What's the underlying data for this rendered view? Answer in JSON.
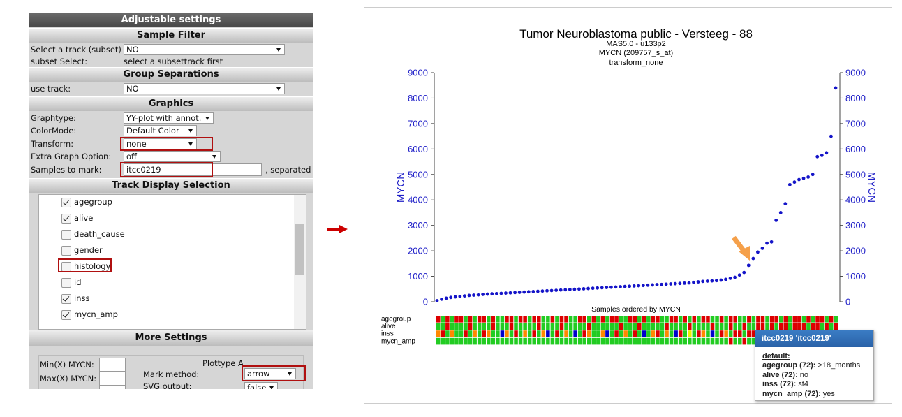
{
  "panel": {
    "title": "Adjustable settings",
    "sample_filter": {
      "heading": "Sample Filter",
      "rows": [
        {
          "label": "Select a track (subset)",
          "value": "NO"
        },
        {
          "label": "subset Select:",
          "value": "select a subsettrack first"
        }
      ]
    },
    "group_separations": {
      "heading": "Group Separations",
      "rows": [
        {
          "label": "use track:",
          "value": "NO"
        }
      ]
    },
    "graphics": {
      "heading": "Graphics",
      "rows": [
        {
          "label": "Graphtype:",
          "value": "YY-plot with annot."
        },
        {
          "label": "ColorMode:",
          "value": "Default Color"
        },
        {
          "label": "Transform:",
          "value": "none"
        },
        {
          "label": "Extra Graph Option:",
          "value": "off"
        },
        {
          "label": "Samples to mark:",
          "value": "itcc0219",
          "suffix": ", separated"
        }
      ]
    },
    "track_display": {
      "heading": "Track Display Selection",
      "items": [
        {
          "label": "agegroup",
          "checked": true
        },
        {
          "label": "alive",
          "checked": true
        },
        {
          "label": "death_cause",
          "checked": false
        },
        {
          "label": "gender",
          "checked": false
        },
        {
          "label": "histology",
          "checked": false
        },
        {
          "label": "id",
          "checked": false
        },
        {
          "label": "inss",
          "checked": true
        },
        {
          "label": "mycn_amp",
          "checked": true
        }
      ]
    },
    "more_settings": {
      "heading": "More Settings",
      "min_label": "Min(X) MYCN:",
      "max_label": "Max(X) MYCN:",
      "plottype": "Plottype A",
      "mark_label": "Mark method:",
      "mark_value": "arrow",
      "svg_label": "SVG output:",
      "svg_value": "false"
    }
  },
  "chart_data": {
    "type": "scatter",
    "title": "Tumor Neuroblastoma public - Versteeg - 88",
    "subtitles": [
      "MAS5.0 - u133p2",
      "MYCN (209757_s_at)",
      "transform_none"
    ],
    "y_label": "MYCN",
    "y2_label": "MYCN",
    "x_label": "Samples ordered by MYCN",
    "color": "#1414c8",
    "axis_color": "#2020c8",
    "ylim": [
      0,
      9000
    ],
    "yticks": [
      0,
      1000,
      2000,
      3000,
      4000,
      5000,
      6000,
      7000,
      8000,
      9000
    ],
    "y2lim": [
      0,
      9000
    ],
    "y2ticks": [
      0,
      1000,
      2000,
      3000,
      4000,
      5000,
      6000,
      7000,
      8000,
      9000
    ],
    "values": [
      40,
      100,
      140,
      170,
      190,
      210,
      230,
      250,
      260,
      270,
      290,
      300,
      310,
      320,
      330,
      340,
      350,
      360,
      370,
      380,
      390,
      400,
      410,
      420,
      430,
      440,
      450,
      460,
      470,
      480,
      490,
      500,
      510,
      520,
      530,
      540,
      550,
      560,
      570,
      580,
      590,
      600,
      610,
      620,
      630,
      640,
      650,
      660,
      670,
      680,
      690,
      700,
      710,
      720,
      730,
      740,
      760,
      780,
      800,
      810,
      820,
      830,
      850,
      880,
      920,
      960,
      1050,
      1150,
      1430,
      1700,
      1950,
      2100,
      2300,
      2350,
      3200,
      3500,
      3850,
      4600,
      4700,
      4800,
      4850,
      4900,
      5000,
      5700,
      5750,
      5850,
      6500,
      8400
    ],
    "tracks": [
      {
        "name": "agegroup",
        "colors": [
          "#d00",
          "#2c2",
          "#d00",
          "#2c2",
          "#d00",
          "#d00",
          "#2c2",
          "#d00",
          "#2c2",
          "#d00",
          "#d00",
          "#2c2",
          "#d00",
          "#2c2",
          "#2c2",
          "#d00",
          "#d00",
          "#2c2",
          "#d00",
          "#d00",
          "#2c2",
          "#d00",
          "#d00",
          "#2c2",
          "#2c2",
          "#d00",
          "#2c2",
          "#d00",
          "#d00",
          "#2c2",
          "#2c2",
          "#d00",
          "#d00",
          "#2c2",
          "#d00",
          "#2c2",
          "#d00",
          "#2c2",
          "#d00",
          "#d00",
          "#2c2",
          "#2c2",
          "#d00",
          "#d00",
          "#2c2",
          "#d00",
          "#2c2",
          "#d00",
          "#d00",
          "#2c2",
          "#2c2",
          "#d00",
          "#d00",
          "#2c2",
          "#d00",
          "#2c2",
          "#d00",
          "#2c2",
          "#d00",
          "#d00",
          "#2c2",
          "#2c2",
          "#d00",
          "#2c2",
          "#d00",
          "#d00",
          "#2c2",
          "#2c2",
          "#d00",
          "#2c2",
          "#d00",
          "#d00",
          "#2c2",
          "#d00",
          "#d00",
          "#2c2",
          "#d00",
          "#2c2",
          "#d00",
          "#d00",
          "#2c2",
          "#d00",
          "#2c2",
          "#d00",
          "#d00",
          "#2c2",
          "#d00",
          "#2c2"
        ]
      },
      {
        "name": "alive",
        "colors": [
          "#2c2",
          "#2c2",
          "#d00",
          "#2c2",
          "#2c2",
          "#2c2",
          "#2c2",
          "#d00",
          "#2c2",
          "#2c2",
          "#2c2",
          "#2c2",
          "#d00",
          "#2c2",
          "#2c2",
          "#2c2",
          "#d00",
          "#2c2",
          "#2c2",
          "#2c2",
          "#2c2",
          "#2c2",
          "#d00",
          "#2c2",
          "#2c2",
          "#2c2",
          "#2c2",
          "#d00",
          "#2c2",
          "#2c2",
          "#2c2",
          "#2c2",
          "#2c2",
          "#d00",
          "#2c2",
          "#2c2",
          "#2c2",
          "#2c2",
          "#2c2",
          "#2c2",
          "#d00",
          "#2c2",
          "#2c2",
          "#2c2",
          "#d00",
          "#2c2",
          "#2c2",
          "#2c2",
          "#2c2",
          "#2c2",
          "#d00",
          "#2c2",
          "#2c2",
          "#2c2",
          "#2c2",
          "#d00",
          "#2c2",
          "#2c2",
          "#2c2",
          "#2c2",
          "#d00",
          "#2c2",
          "#2c2",
          "#2c2",
          "#d00",
          "#2c2",
          "#2c2",
          "#d00",
          "#2c2",
          "#2c2",
          "#d00",
          "#d00",
          "#2c2",
          "#d00",
          "#2c2",
          "#d00",
          "#d00",
          "#2c2",
          "#d00",
          "#d00",
          "#d00",
          "#2c2",
          "#d00",
          "#d00",
          "#2c2",
          "#d00",
          "#2c2",
          "#d00"
        ]
      },
      {
        "name": "inss",
        "colors": [
          "#f80",
          "#d00",
          "#2c2",
          "#f80",
          "#2c2",
          "#2c2",
          "#d00",
          "#2c2",
          "#f80",
          "#2c2",
          "#d00",
          "#f80",
          "#2c2",
          "#2c2",
          "#00c",
          "#f80",
          "#2c2",
          "#d00",
          "#2c2",
          "#f80",
          "#2c2",
          "#d00",
          "#2c2",
          "#f80",
          "#00c",
          "#2c2",
          "#d00",
          "#2c2",
          "#f80",
          "#2c2",
          "#00c",
          "#2c2",
          "#d00",
          "#f80",
          "#2c2",
          "#2c2",
          "#f80",
          "#00c",
          "#2c2",
          "#d00",
          "#2c2",
          "#f80",
          "#2c2",
          "#d00",
          "#2c2",
          "#00c",
          "#2c2",
          "#f80",
          "#d00",
          "#2c2",
          "#f80",
          "#2c2",
          "#00c",
          "#d00",
          "#2c2",
          "#ee0",
          "#2c2",
          "#d00",
          "#f80",
          "#2c2",
          "#00c",
          "#2c2",
          "#d00",
          "#f80",
          "#2c2",
          "#d00",
          "#d00",
          "#2c2",
          "#d00",
          "#d00",
          "#2c2",
          "#d00",
          "#d00",
          "#d00",
          "#2c2",
          "#d00",
          "#d00",
          "#d00",
          "#2c2",
          "#d00",
          "#d00",
          "#d00",
          "#d00",
          "#2c2",
          "#d00",
          "#d00",
          "#d00",
          "#d00"
        ]
      },
      {
        "name": "mycn_amp",
        "colors": [
          "#2c2",
          "#2c2",
          "#2c2",
          "#2c2",
          "#2c2",
          "#2c2",
          "#2c2",
          "#2c2",
          "#2c2",
          "#2c2",
          "#2c2",
          "#2c2",
          "#2c2",
          "#2c2",
          "#2c2",
          "#2c2",
          "#2c2",
          "#2c2",
          "#2c2",
          "#2c2",
          "#2c2",
          "#2c2",
          "#2c2",
          "#2c2",
          "#2c2",
          "#2c2",
          "#2c2",
          "#2c2",
          "#2c2",
          "#2c2",
          "#2c2",
          "#2c2",
          "#2c2",
          "#2c2",
          "#2c2",
          "#2c2",
          "#2c2",
          "#2c2",
          "#2c2",
          "#2c2",
          "#2c2",
          "#2c2",
          "#2c2",
          "#2c2",
          "#2c2",
          "#2c2",
          "#2c2",
          "#2c2",
          "#2c2",
          "#2c2",
          "#2c2",
          "#2c2",
          "#2c2",
          "#2c2",
          "#2c2",
          "#2c2",
          "#2c2",
          "#2c2",
          "#2c2",
          "#2c2",
          "#2c2",
          "#2c2",
          "#2c2",
          "#2c2",
          "#d00",
          "#2c2",
          "#2c2",
          "#d00",
          "#2c2",
          "#2c2",
          "#d00",
          "#2c2",
          "#2c2",
          "#d00",
          "#d00",
          "#2c2",
          "#d00",
          "#d00",
          "#d00",
          "#2c2",
          "#d00",
          "#d00",
          "#2c2",
          "#d00",
          "#d00",
          "#d00",
          "#d00",
          "#d00"
        ]
      }
    ],
    "tooltip": {
      "title": "itcc0219 'itcc0219'",
      "group": "default:",
      "rows": [
        {
          "key": "agegroup (72):",
          "value": ">18_months"
        },
        {
          "key": "alive (72):",
          "value": "no"
        },
        {
          "key": "inss (72):",
          "value": "st4"
        },
        {
          "key": "mycn_amp (72):",
          "value": "yes"
        }
      ]
    }
  }
}
